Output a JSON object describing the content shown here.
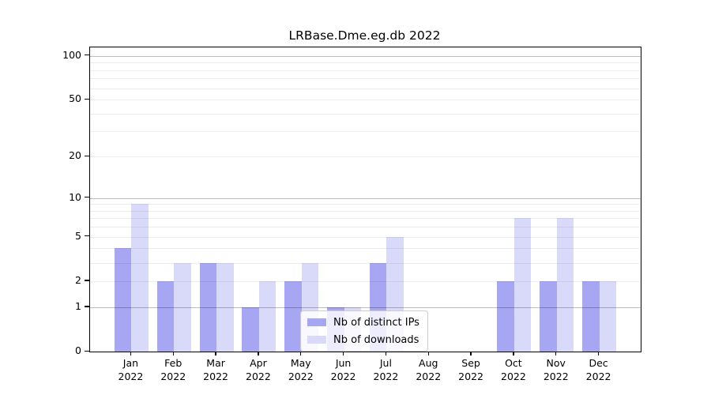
{
  "title": "LRBase.Dme.eg.db 2022",
  "chart_data": {
    "type": "bar",
    "title": "LRBase.Dme.eg.db 2022",
    "categories": [
      "Jan",
      "Feb",
      "Mar",
      "Apr",
      "May",
      "Jun",
      "Jul",
      "Aug",
      "Sep",
      "Oct",
      "Nov",
      "Dec"
    ],
    "year_label": "2022",
    "series": [
      {
        "name": "Nb of distinct IPs",
        "color": "#a6a6f2",
        "values": [
          4,
          2,
          3,
          1,
          2,
          1,
          3,
          0,
          0,
          2,
          2,
          2
        ]
      },
      {
        "name": "Nb of downloads",
        "color": "#d9d9fa",
        "values": [
          9,
          3,
          3,
          2,
          3,
          1,
          5,
          0,
          0,
          7,
          7,
          2
        ]
      }
    ],
    "yscale": "log1p",
    "y_ticks": [
      0,
      1,
      2,
      5,
      10,
      20,
      50,
      100
    ],
    "grid_major": [
      1,
      10,
      100
    ],
    "grid_minor": [
      2,
      3,
      4,
      5,
      6,
      7,
      8,
      9,
      20,
      30,
      40,
      50,
      60,
      70,
      80,
      90
    ],
    "ylim_log1p_top": 4.747,
    "legend_position": "lower-center",
    "colors": {
      "grid_major": "rgba(0,0,0,0.26)",
      "grid_minor": "rgba(0,0,0,0.07)",
      "axis": "#000000"
    }
  }
}
